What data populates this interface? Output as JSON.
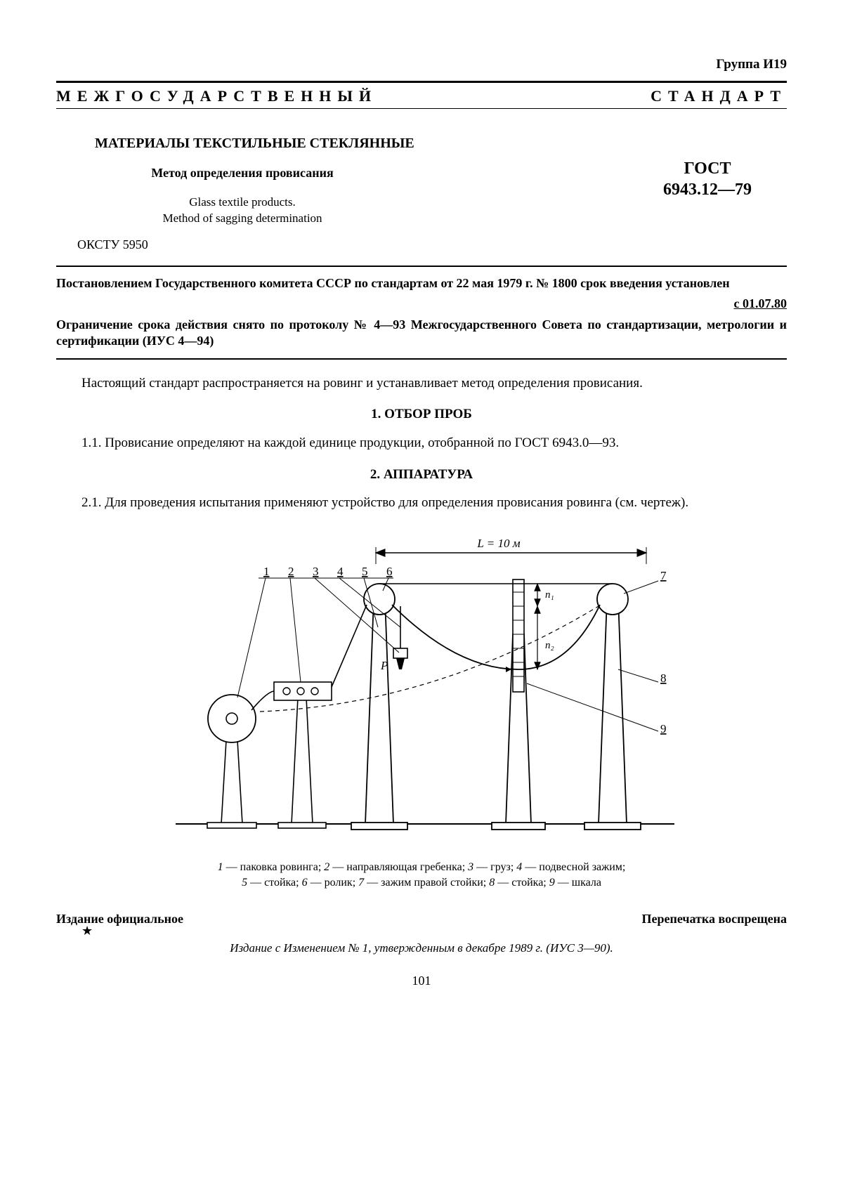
{
  "group": "Группа И19",
  "banner_left": "МЕЖГОСУДАРСТВЕННЫЙ",
  "banner_right": "СТАНДАРТ",
  "title_ru": "МАТЕРИАЛЫ ТЕКСТИЛЬНЫЕ СТЕКЛЯННЫЕ",
  "subtitle_ru": "Метод определения  провисания",
  "subtitle_en1": "Glass textile products.",
  "subtitle_en2": "Method  of  sagging determination",
  "gost_label": "ГОСТ",
  "gost_number": "6943.12—79",
  "okstu": "ОКСТУ 5950",
  "decree1": "Постановлением Государственного комитета СССР по стандартам от 22 мая 1979 г. № 1800 срок введения установлен",
  "decree_date": "с 01.07.80",
  "decree2": "Ограничение срока действия снято по протоколу № 4—93 Межгосударственного Совета по стандартизации, метрологии и сертификации (ИУС 4—94)",
  "intro": "Настоящий стандарт распространяется на ровинг и устанавливает метод определения провиса­ния.",
  "section1": "1. ОТБОР ПРОБ",
  "clause11": "1.1.  Провисание определяют на каждой единице продукции, отобранной по ГОСТ 6943.0—93.",
  "section2": "2. АППАРАТУРА",
  "clause21": "2.1. Для проведения испытания применяют устройство для определения провисания ровинга (см. чертеж).",
  "figure": {
    "length_label": "L = 10 м",
    "labels": [
      "1",
      "2",
      "3",
      "4",
      "5",
      "6",
      "7",
      "8",
      "9"
    ],
    "P": "P",
    "n1": "n₁",
    "n2": "n₂",
    "caption_line1_parts": [
      {
        "n": "1",
        "t": " — паковка ровинга; "
      },
      {
        "n": "2",
        "t": " — направляющая гребенка; "
      },
      {
        "n": "3",
        "t": " — груз; "
      },
      {
        "n": "4",
        "t": " — подвесной зажим;"
      }
    ],
    "caption_line2_parts": [
      {
        "n": "5",
        "t": " — стойка; "
      },
      {
        "n": "6",
        "t": " — ролик; "
      },
      {
        "n": "7",
        "t": " — зажим правой стойки; "
      },
      {
        "n": "8",
        "t": " — стойка; "
      },
      {
        "n": "9",
        "t": " — шкала"
      }
    ]
  },
  "footer_left": "Издание официальное",
  "footer_right": "Перепечатка воспрещена",
  "star": "★",
  "amendment": "Издание с Изменением № 1,  утвержденным в декабре 1989 г. (ИУС 3—90).",
  "page": "101"
}
